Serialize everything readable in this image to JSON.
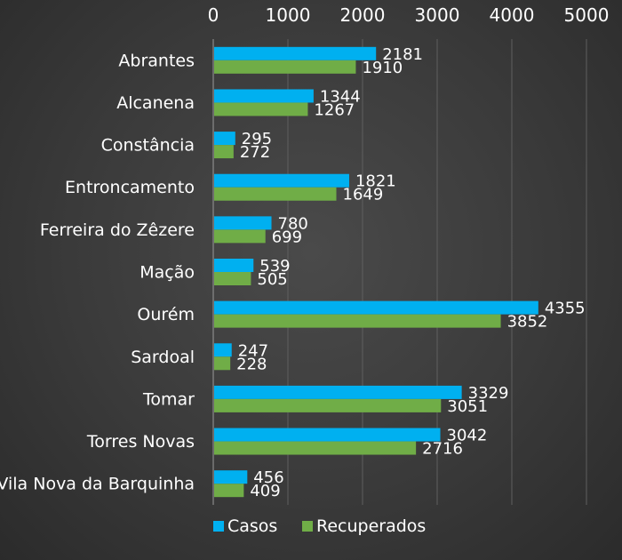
{
  "chart_data": {
    "type": "bar",
    "orientation": "horizontal",
    "categories": [
      "Abrantes",
      "Alcanena",
      "Constância",
      "Entroncamento",
      "Ferreira do Zêzere",
      "Mação",
      "Ourém",
      "Sardoal",
      "Tomar",
      "Torres Novas",
      "Vila Nova da Barquinha"
    ],
    "series": [
      {
        "name": "Casos",
        "color": "#00b0f0",
        "values": [
          2181,
          1344,
          295,
          1821,
          780,
          539,
          4355,
          247,
          3329,
          3042,
          456
        ]
      },
      {
        "name": "Recuperados",
        "color": "#70ad47",
        "values": [
          1910,
          1267,
          272,
          1649,
          699,
          505,
          3852,
          228,
          3051,
          2716,
          409
        ]
      }
    ],
    "xlim": [
      0,
      5000
    ],
    "xticks": [
      0,
      1000,
      2000,
      3000,
      4000,
      5000
    ],
    "axis_position": "top",
    "grid": true,
    "legend": "bottom-left",
    "title": "",
    "xlabel": "",
    "ylabel": ""
  }
}
